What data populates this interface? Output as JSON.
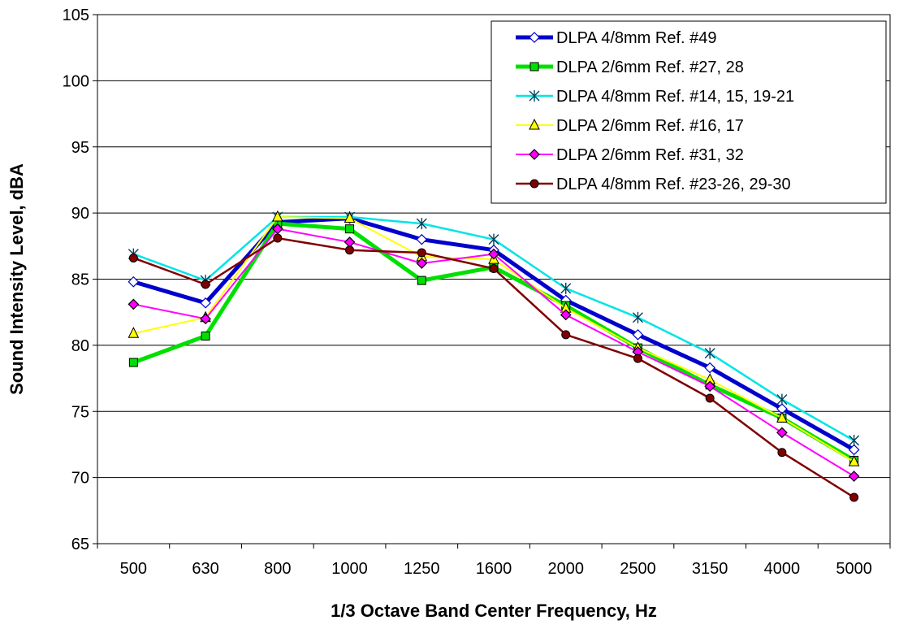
{
  "chart_data": {
    "type": "line",
    "title": "",
    "xlabel": "1/3 Octave Band Center Frequency, Hz",
    "ylabel": "Sound Intensity Level, dBA",
    "categories": [
      "500",
      "630",
      "800",
      "1000",
      "1250",
      "1600",
      "2000",
      "2500",
      "3150",
      "4000",
      "5000"
    ],
    "ylim": [
      65,
      105
    ],
    "yticks": [
      65,
      70,
      75,
      80,
      85,
      90,
      95,
      100,
      105
    ],
    "grid": "horizontal",
    "legend_position": "top-right",
    "series": [
      {
        "name": "DLPA 4/8mm Ref. #49",
        "color": "#0000cc",
        "marker": "diamond-open",
        "values": [
          84.8,
          83.2,
          89.3,
          89.6,
          88.0,
          87.2,
          83.4,
          80.8,
          78.3,
          75.2,
          72.1
        ]
      },
      {
        "name": "DLPA 2/6mm Ref. #27, 28",
        "color": "#00e000",
        "marker": "square",
        "values": [
          78.7,
          80.7,
          89.2,
          88.8,
          84.9,
          85.9,
          83.0,
          79.8,
          77.0,
          74.5,
          71.3
        ]
      },
      {
        "name": "DLPA 4/8mm Ref. #14, 15, 19-21",
        "color": "#00e5e5",
        "marker": "asterisk",
        "values": [
          86.9,
          84.9,
          89.7,
          89.7,
          89.2,
          88.0,
          84.3,
          82.1,
          79.4,
          75.9,
          72.8
        ]
      },
      {
        "name": "DLPA 2/6mm Ref. #16, 17",
        "color": "#ffff00",
        "marker": "triangle",
        "values": [
          80.9,
          82.1,
          89.7,
          89.6,
          86.7,
          86.5,
          82.8,
          79.8,
          77.4,
          74.5,
          71.2
        ]
      },
      {
        "name": "DLPA 2/6mm Ref. #31, 32",
        "color": "#ff00ff",
        "marker": "diamond",
        "values": [
          83.1,
          82.0,
          88.8,
          87.8,
          86.2,
          86.9,
          82.3,
          79.5,
          76.9,
          73.4,
          70.1
        ]
      },
      {
        "name": "DLPA 4/8mm Ref. #23-26, 29-30",
        "color": "#800000",
        "marker": "circle",
        "values": [
          86.6,
          84.6,
          88.1,
          87.2,
          87.0,
          85.8,
          80.8,
          79.0,
          76.0,
          71.9,
          68.5
        ]
      }
    ]
  }
}
